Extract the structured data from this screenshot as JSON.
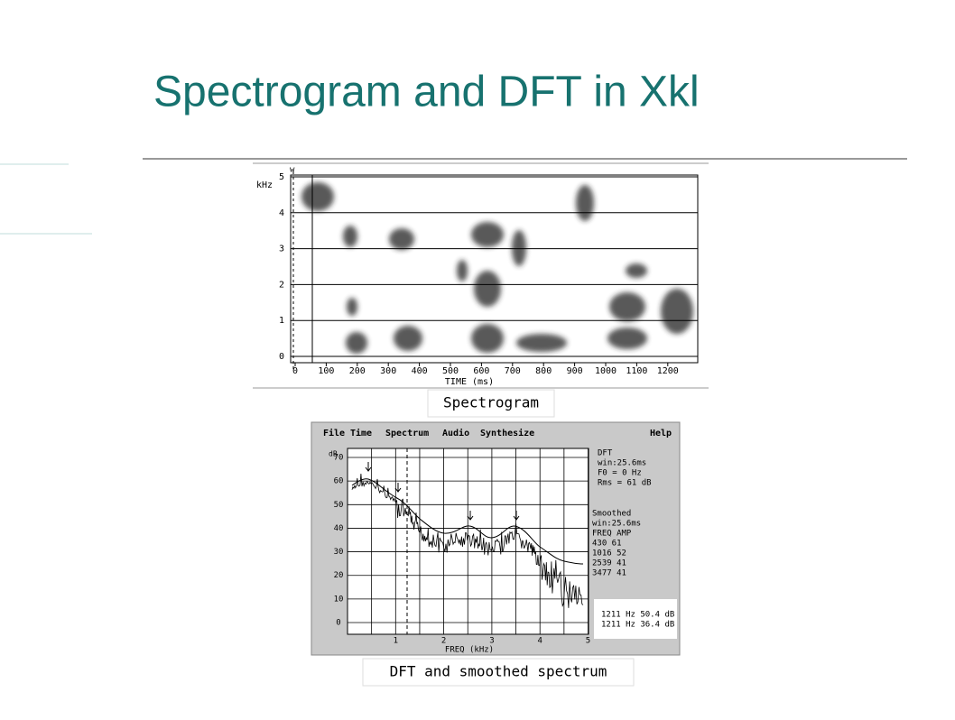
{
  "title": "Spectrogram and DFT in Xkl",
  "spectrogram": {
    "marker": "w",
    "y_unit": "kHz",
    "yticks": [
      0,
      1,
      2,
      3,
      4,
      5
    ],
    "xticks": [
      0,
      100,
      200,
      300,
      400,
      500,
      600,
      700,
      800,
      900,
      1000,
      1100,
      1200
    ],
    "x_label": "TIME (ms)",
    "caption": "Spectrogram"
  },
  "dft": {
    "menu": [
      "File",
      "Time",
      "Spectrum",
      "Audio",
      "Synthesize"
    ],
    "help": "Help",
    "y_unit": "dB",
    "yticks": [
      0,
      10,
      20,
      30,
      40,
      50,
      60,
      70
    ],
    "xticks": [
      1,
      2,
      3,
      4,
      5
    ],
    "x_label": "FREQ (kHz)",
    "info_dft": [
      "DFT",
      "win:25.6ms",
      "F0 = 0 Hz",
      "Rms = 61 dB"
    ],
    "info_smoothed": [
      "Smoothed",
      "win:25.6ms",
      "FREQ AMP",
      "430 61",
      "1016 52",
      "2539 41",
      "3477 41"
    ],
    "cursor": [
      "1211 Hz 50.4 dB",
      "1211 Hz 36.4 dB"
    ],
    "caption": "DFT and smoothed spectrum"
  }
}
